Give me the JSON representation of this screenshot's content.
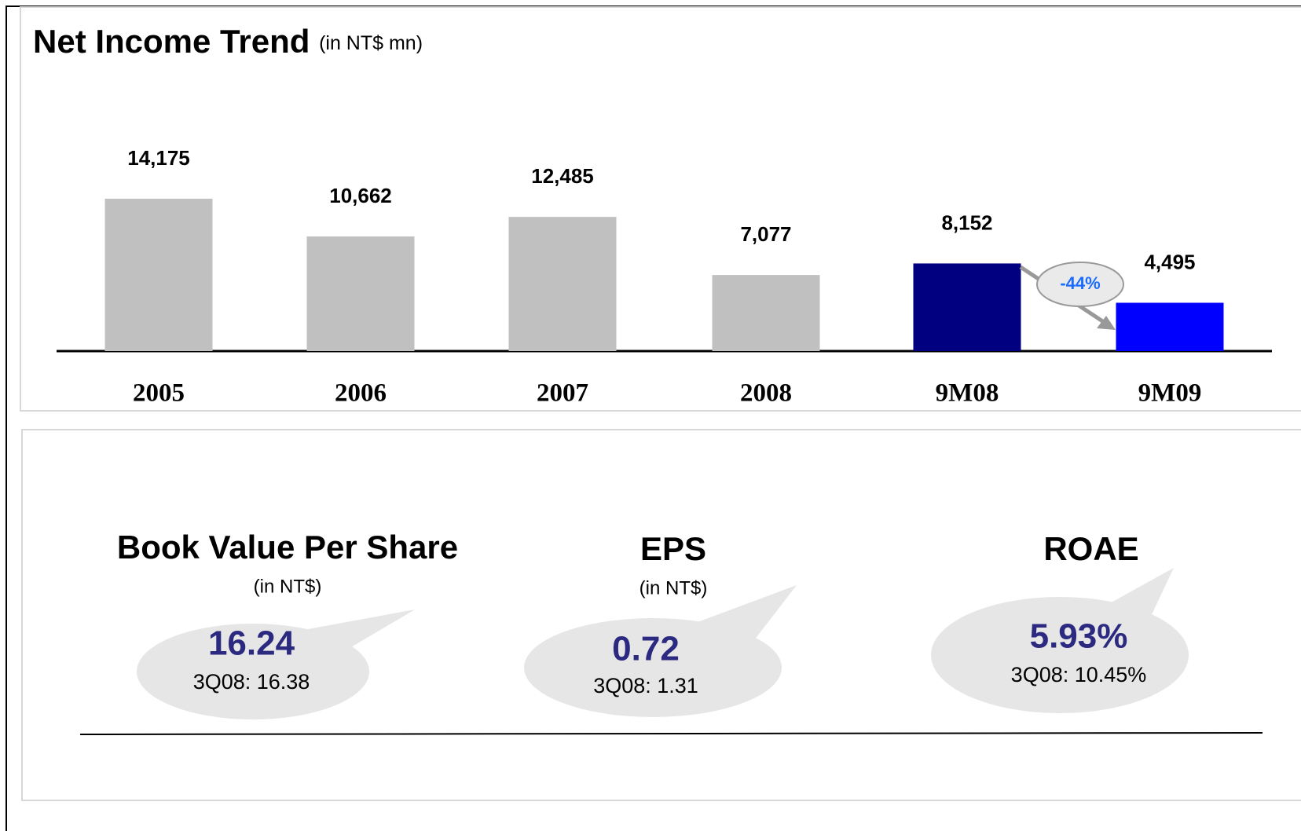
{
  "chart_data": {
    "type": "bar",
    "title": "Net Income Trend",
    "subtitle": "(in NT$ mn)",
    "categories": [
      "2005",
      "2006",
      "2007",
      "2008",
      "9M08",
      "9M09"
    ],
    "values": [
      14175,
      10662,
      12485,
      7077,
      8152,
      4495
    ],
    "value_labels": [
      "14,175",
      "10,662",
      "12,485",
      "7,077",
      "8,152",
      "4,495"
    ],
    "colors": [
      "#c0c0c0",
      "#c0c0c0",
      "#c0c0c0",
      "#c0c0c0",
      "#000080",
      "#0000ff"
    ],
    "annotation": "-44%"
  },
  "kpis": [
    {
      "title": "Book Value Per Share",
      "unit": "(in NT$)",
      "value": "16.24",
      "comparison": "3Q08: 16.38"
    },
    {
      "title": "EPS",
      "unit": "(in NT$)",
      "value": "0.72",
      "comparison": "3Q08: 1.31"
    },
    {
      "title": "ROAE",
      "value": "5.93%",
      "comparison": "3Q08: 10.45%"
    }
  ]
}
